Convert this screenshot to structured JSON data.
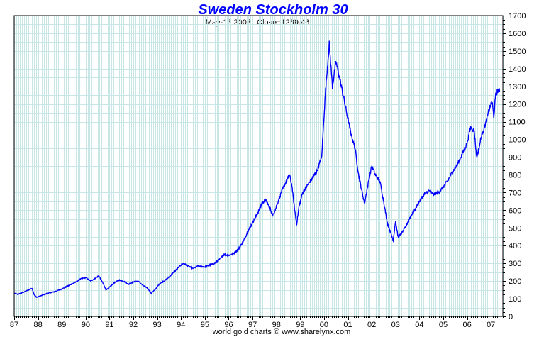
{
  "chart_data": {
    "type": "line",
    "title": "Sweden Stockholm 30",
    "date_label": "May-18  2007",
    "close_label": "Close=1269.46",
    "footer": "world gold charts © www.sharelynx.com",
    "xlabel": "",
    "ylabel": "",
    "ylim": [
      0,
      1700
    ],
    "xlim": [
      1987.0,
      2007.5
    ],
    "y_ticks": [
      0,
      100,
      200,
      300,
      400,
      500,
      600,
      700,
      800,
      900,
      1000,
      1100,
      1200,
      1300,
      1400,
      1500,
      1600,
      1700
    ],
    "x_ticks": [
      {
        "value": 1987,
        "label": "87"
      },
      {
        "value": 1988,
        "label": "88"
      },
      {
        "value": 1989,
        "label": "89"
      },
      {
        "value": 1990,
        "label": "90"
      },
      {
        "value": 1991,
        "label": "91"
      },
      {
        "value": 1992,
        "label": "92"
      },
      {
        "value": 1993,
        "label": "93"
      },
      {
        "value": 1994,
        "label": "94"
      },
      {
        "value": 1995,
        "label": "95"
      },
      {
        "value": 1996,
        "label": "96"
      },
      {
        "value": 1997,
        "label": "97"
      },
      {
        "value": 1998,
        "label": "98"
      },
      {
        "value": 1999,
        "label": "99"
      },
      {
        "value": 2000,
        "label": "00"
      },
      {
        "value": 2001,
        "label": "01"
      },
      {
        "value": 2002,
        "label": "02"
      },
      {
        "value": 2003,
        "label": "03"
      },
      {
        "value": 2004,
        "label": "04"
      },
      {
        "value": 2005,
        "label": "05"
      },
      {
        "value": 2006,
        "label": "06"
      },
      {
        "value": 2007,
        "label": "07"
      }
    ],
    "grid": true,
    "series": [
      {
        "name": "Sweden Stockholm 30",
        "color": "#0000ff",
        "points": [
          [
            1987.0,
            130
          ],
          [
            1987.15,
            125
          ],
          [
            1987.3,
            132
          ],
          [
            1987.45,
            140
          ],
          [
            1987.6,
            150
          ],
          [
            1987.75,
            158
          ],
          [
            1987.85,
            120
          ],
          [
            1987.95,
            108
          ],
          [
            1988.15,
            118
          ],
          [
            1988.4,
            130
          ],
          [
            1988.7,
            140
          ],
          [
            1989.0,
            155
          ],
          [
            1989.3,
            175
          ],
          [
            1989.6,
            195
          ],
          [
            1989.8,
            212
          ],
          [
            1990.0,
            220
          ],
          [
            1990.2,
            200
          ],
          [
            1990.4,
            215
          ],
          [
            1990.55,
            230
          ],
          [
            1990.7,
            195
          ],
          [
            1990.85,
            150
          ],
          [
            1991.0,
            165
          ],
          [
            1991.2,
            190
          ],
          [
            1991.4,
            205
          ],
          [
            1991.6,
            198
          ],
          [
            1991.8,
            182
          ],
          [
            1992.0,
            195
          ],
          [
            1992.2,
            200
          ],
          [
            1992.4,
            175
          ],
          [
            1992.6,
            160
          ],
          [
            1992.75,
            130
          ],
          [
            1992.9,
            150
          ],
          [
            1993.1,
            185
          ],
          [
            1993.4,
            210
          ],
          [
            1993.7,
            250
          ],
          [
            1993.95,
            285
          ],
          [
            1994.1,
            300
          ],
          [
            1994.3,
            285
          ],
          [
            1994.5,
            270
          ],
          [
            1994.7,
            285
          ],
          [
            1995.0,
            280
          ],
          [
            1995.2,
            290
          ],
          [
            1995.4,
            300
          ],
          [
            1995.6,
            320
          ],
          [
            1995.8,
            350
          ],
          [
            1996.0,
            345
          ],
          [
            1996.2,
            355
          ],
          [
            1996.4,
            380
          ],
          [
            1996.6,
            420
          ],
          [
            1996.8,
            480
          ],
          [
            1997.0,
            530
          ],
          [
            1997.2,
            580
          ],
          [
            1997.4,
            640
          ],
          [
            1997.55,
            660
          ],
          [
            1997.7,
            620
          ],
          [
            1997.85,
            570
          ],
          [
            1998.0,
            620
          ],
          [
            1998.2,
            700
          ],
          [
            1998.4,
            760
          ],
          [
            1998.55,
            800
          ],
          [
            1998.65,
            740
          ],
          [
            1998.75,
            620
          ],
          [
            1998.85,
            520
          ],
          [
            1998.95,
            620
          ],
          [
            1999.1,
            700
          ],
          [
            1999.3,
            740
          ],
          [
            1999.5,
            780
          ],
          [
            1999.7,
            820
          ],
          [
            1999.9,
            900
          ],
          [
            2000.05,
            1250
          ],
          [
            2000.18,
            1480
          ],
          [
            2000.22,
            1540
          ],
          [
            2000.35,
            1300
          ],
          [
            2000.5,
            1440
          ],
          [
            2000.65,
            1350
          ],
          [
            2000.8,
            1250
          ],
          [
            2000.95,
            1150
          ],
          [
            2001.1,
            1050
          ],
          [
            2001.3,
            950
          ],
          [
            2001.45,
            800
          ],
          [
            2001.6,
            700
          ],
          [
            2001.7,
            640
          ],
          [
            2001.85,
            750
          ],
          [
            2002.0,
            850
          ],
          [
            2002.15,
            800
          ],
          [
            2002.35,
            760
          ],
          [
            2002.5,
            650
          ],
          [
            2002.65,
            530
          ],
          [
            2002.8,
            470
          ],
          [
            2002.9,
            430
          ],
          [
            2003.0,
            540
          ],
          [
            2003.1,
            450
          ],
          [
            2003.2,
            460
          ],
          [
            2003.4,
            500
          ],
          [
            2003.6,
            560
          ],
          [
            2003.8,
            600
          ],
          [
            2004.0,
            650
          ],
          [
            2004.2,
            690
          ],
          [
            2004.4,
            710
          ],
          [
            2004.6,
            690
          ],
          [
            2004.8,
            700
          ],
          [
            2005.0,
            730
          ],
          [
            2005.2,
            770
          ],
          [
            2005.4,
            820
          ],
          [
            2005.6,
            860
          ],
          [
            2005.8,
            920
          ],
          [
            2006.0,
            980
          ],
          [
            2006.15,
            1070
          ],
          [
            2006.3,
            1050
          ],
          [
            2006.4,
            900
          ],
          [
            2006.5,
            950
          ],
          [
            2006.6,
            1020
          ],
          [
            2006.8,
            1100
          ],
          [
            2006.95,
            1180
          ],
          [
            2007.05,
            1210
          ],
          [
            2007.12,
            1130
          ],
          [
            2007.2,
            1250
          ],
          [
            2007.3,
            1280
          ],
          [
            2007.38,
            1269
          ]
        ]
      }
    ]
  }
}
